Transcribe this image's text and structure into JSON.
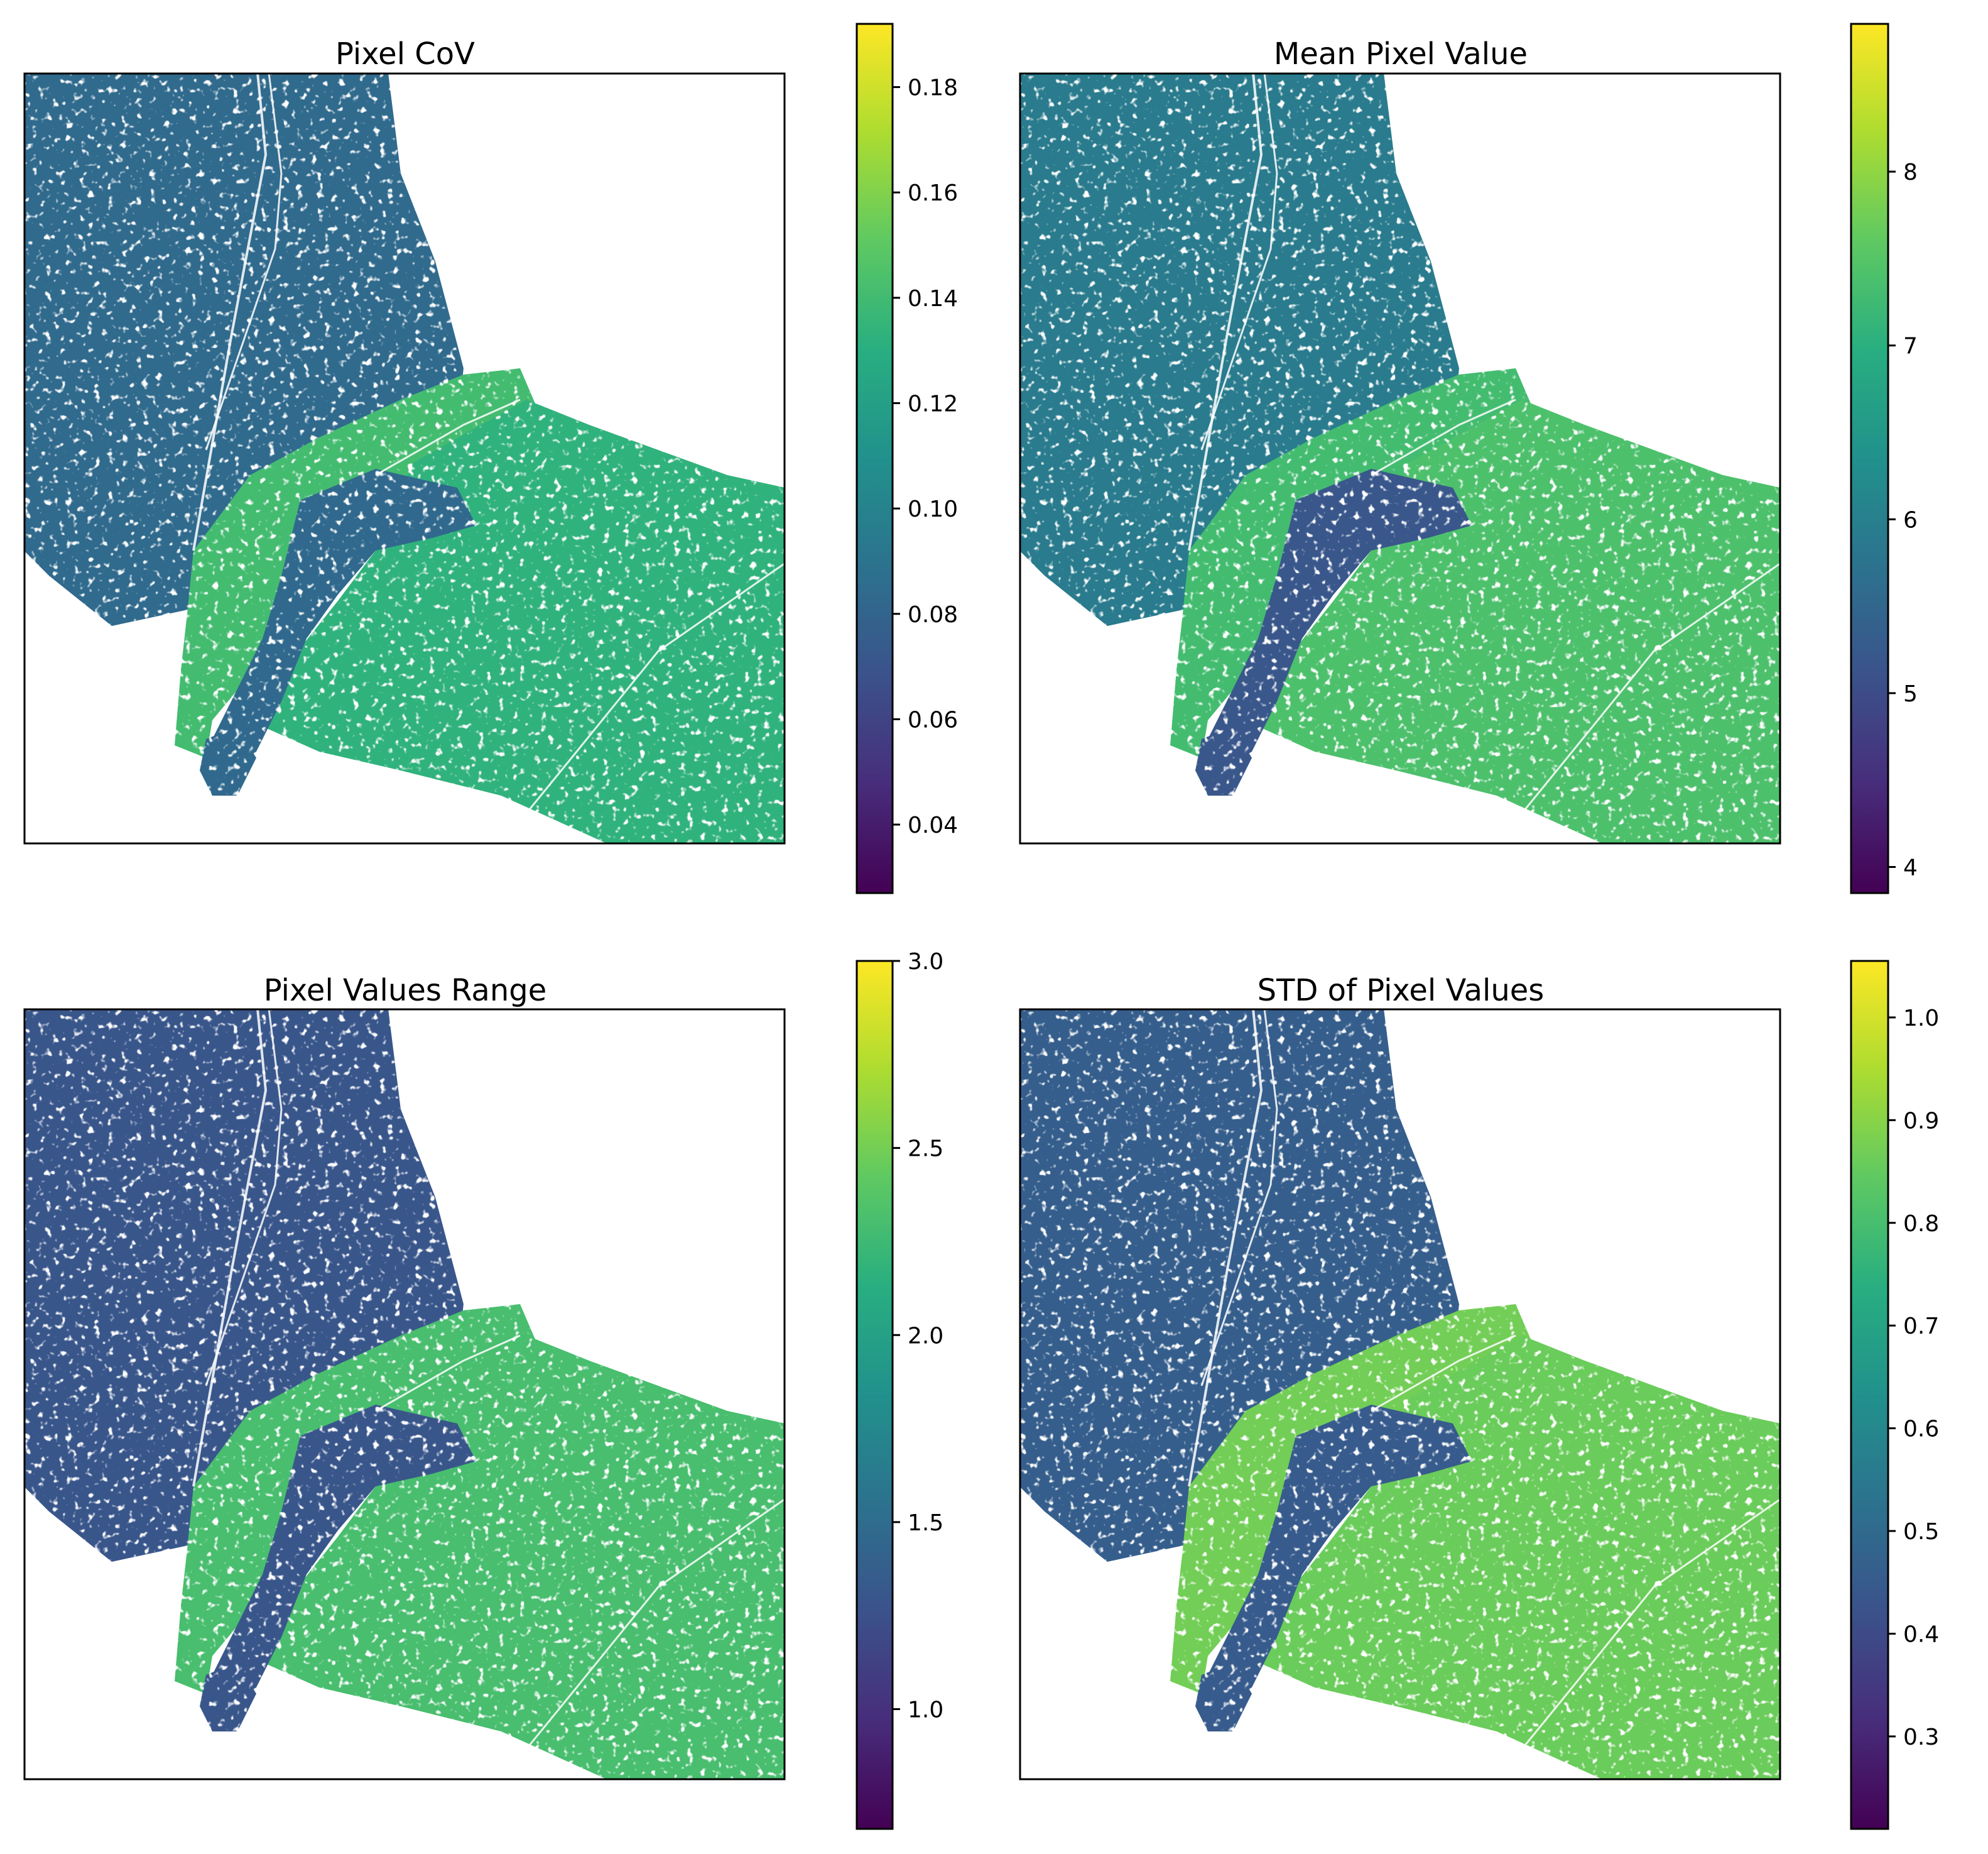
{
  "colormap": "viridis",
  "colormap_stops": [
    "#440154",
    "#472d7b",
    "#3b528b",
    "#2c728e",
    "#21918c",
    "#28ae80",
    "#5ec962",
    "#addc30",
    "#fde725"
  ],
  "no_data_color": "#ffffff",
  "chart_data": [
    {
      "type": "heatmap",
      "title": "Pixel CoV",
      "colorbar": {
        "ticks": [
          "0.04",
          "0.06",
          "0.08",
          "0.10",
          "0.12",
          "0.14",
          "0.16",
          "0.18"
        ],
        "tick_values": [
          0.04,
          0.06,
          0.08,
          0.1,
          0.12,
          0.14,
          0.16,
          0.18
        ],
        "range": [
          0.027,
          0.192
        ]
      },
      "regions": {
        "north_west": 0.084,
        "central_band": 0.141,
        "east": 0.133,
        "south_channel": 0.083
      },
      "axes_ticks_visible": false
    },
    {
      "type": "heatmap",
      "title": "Mean Pixel Value",
      "colorbar": {
        "ticks": [
          "4",
          "5",
          "6",
          "7",
          "8"
        ],
        "tick_values": [
          4,
          5,
          6,
          7,
          8
        ],
        "range": [
          3.85,
          8.85
        ]
      },
      "regions": {
        "north_west": 5.9,
        "central_band": 7.3,
        "east": 7.4,
        "south_channel": 5.2
      },
      "axes_ticks_visible": false
    },
    {
      "type": "heatmap",
      "title": "Pixel Values Range",
      "colorbar": {
        "ticks": [
          "1.0",
          "1.5",
          "2.0",
          "2.5",
          "3.0"
        ],
        "tick_values": [
          1.0,
          1.5,
          2.0,
          2.5,
          3.0
        ],
        "range": [
          0.68,
          3.0
        ]
      },
      "regions": {
        "north_west": 1.3,
        "central_band": 2.3,
        "east": 2.3,
        "south_channel": 1.3
      },
      "axes_ticks_visible": false
    },
    {
      "type": "heatmap",
      "title": "STD of Pixel Values",
      "colorbar": {
        "ticks": [
          "0.3",
          "0.4",
          "0.5",
          "0.6",
          "0.7",
          "0.8",
          "0.9",
          "1.0"
        ],
        "tick_values": [
          0.3,
          0.4,
          0.5,
          0.6,
          0.7,
          0.8,
          0.9,
          1.0
        ],
        "range": [
          0.21,
          1.055
        ]
      },
      "regions": {
        "north_west": 0.46,
        "central_band": 0.87,
        "east": 0.86,
        "south_channel": 0.45
      },
      "axes_ticks_visible": false
    }
  ]
}
